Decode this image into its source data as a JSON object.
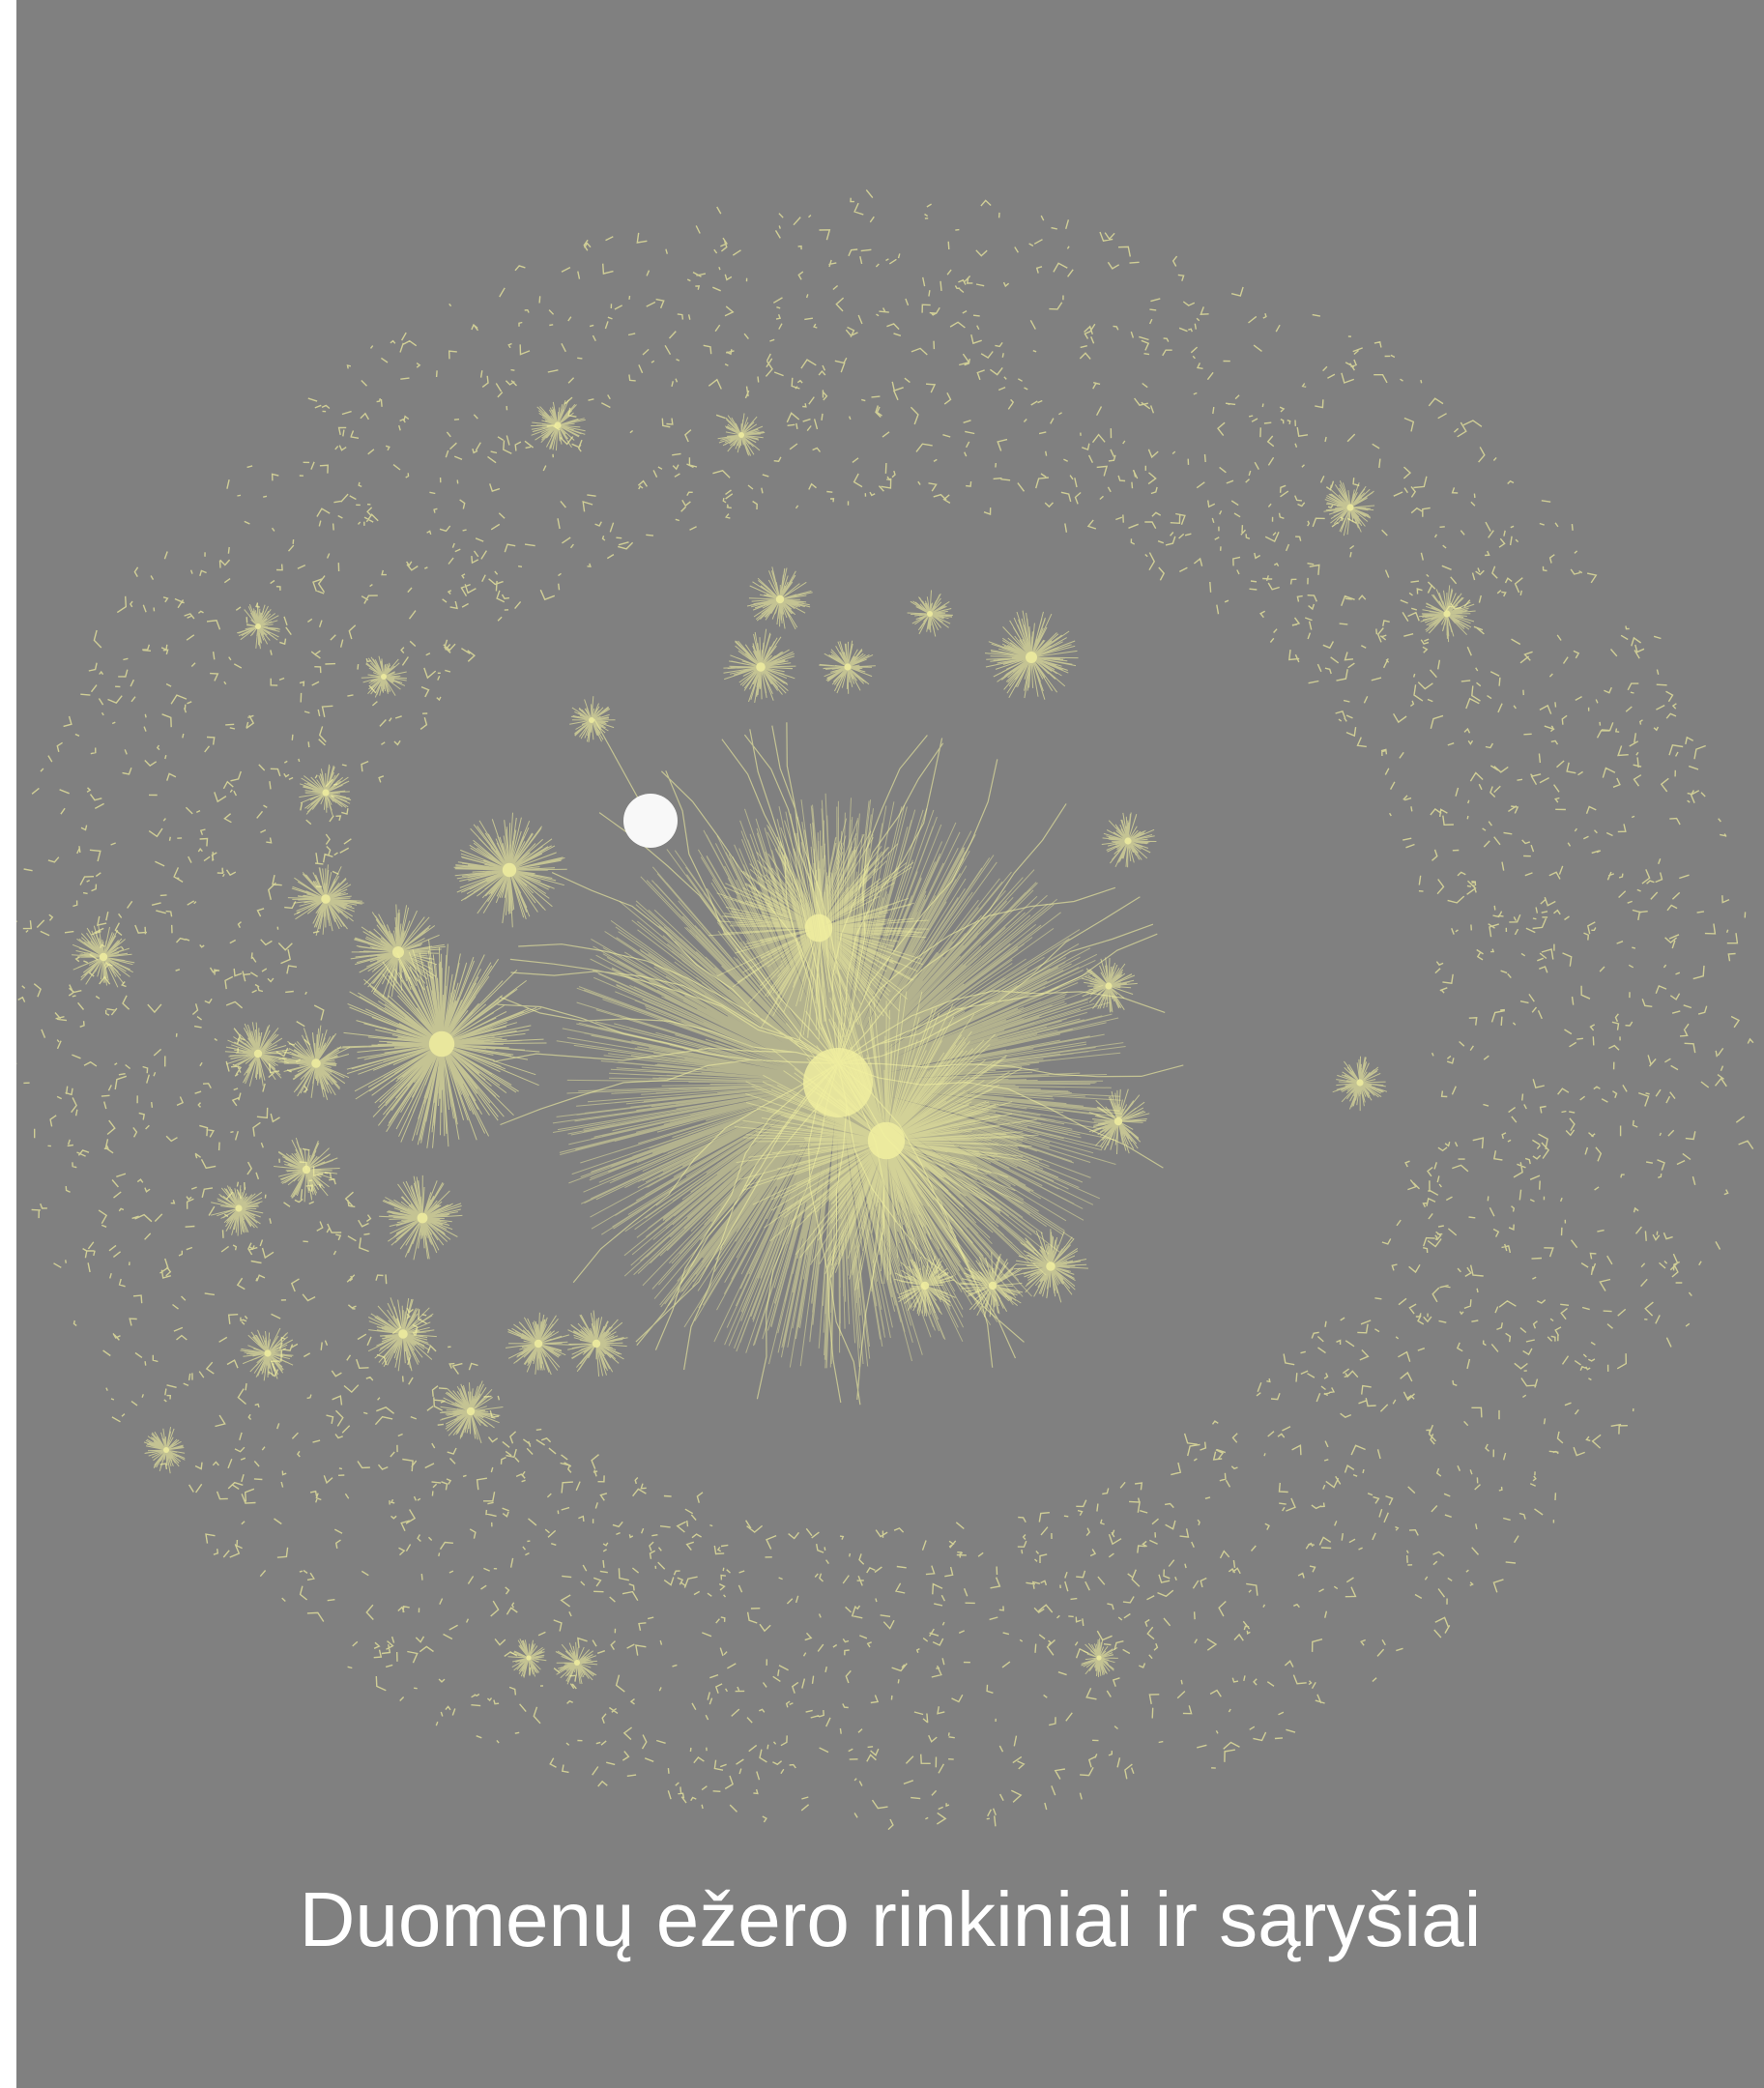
{
  "caption": "Duomenų ežero rinkiniai ir sąryšiai"
}
